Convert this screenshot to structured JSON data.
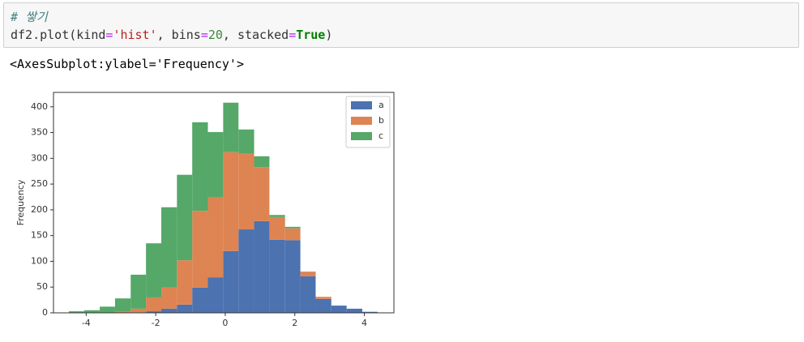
{
  "code": {
    "comment": "# 쌓기",
    "tokens": [
      "df2.plot(kind",
      "=",
      "'hist'",
      ", bins",
      "=",
      "20",
      ", stacked",
      "=",
      "True",
      ")"
    ]
  },
  "output": "<AxesSubplot:ylabel='Frequency'>",
  "chart_data": {
    "type": "histogram",
    "stacked": true,
    "ylabel": "Frequency",
    "bins": [
      -4.5,
      -4.06,
      -3.61,
      -3.17,
      -2.72,
      -2.28,
      -1.84,
      -1.39,
      -0.95,
      -0.5,
      -0.06,
      0.38,
      0.83,
      1.27,
      1.72,
      2.16,
      2.6,
      3.05,
      3.49,
      3.94,
      4.38
    ],
    "series": [
      {
        "name": "a",
        "color": "#4c72b0",
        "values": [
          0,
          0,
          0,
          0,
          1,
          3,
          8,
          16,
          49,
          69,
          120,
          162,
          178,
          142,
          141,
          71,
          27,
          14,
          8,
          2
        ]
      },
      {
        "name": "b",
        "color": "#dd8452",
        "values": [
          0,
          0,
          0,
          2,
          7,
          27,
          41,
          86,
          149,
          156,
          192,
          147,
          105,
          44,
          23,
          9,
          4,
          0,
          0,
          0
        ]
      },
      {
        "name": "c",
        "color": "#55a868",
        "values": [
          3,
          5,
          12,
          26,
          66,
          105,
          156,
          166,
          172,
          126,
          96,
          47,
          21,
          4,
          3,
          0,
          0,
          0,
          0,
          0
        ]
      }
    ],
    "xlim": [
      -4.94,
      4.85
    ],
    "xticks": [
      -4,
      -2,
      0,
      2,
      4
    ],
    "ylim": [
      0,
      428
    ],
    "yticks": [
      0,
      50,
      100,
      150,
      200,
      250,
      300,
      350,
      400
    ],
    "legend": "upper right"
  }
}
